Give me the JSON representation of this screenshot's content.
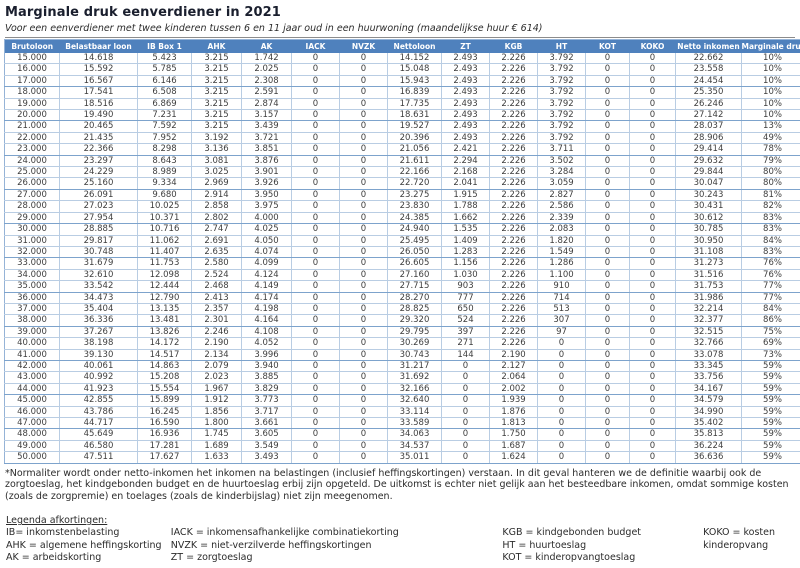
{
  "title": "Marginale druk eenverdiener in 2021",
  "subtitle": "Voor een eenverdiener met twee kinderen tussen 6 en 11 jaar oud in een huurwoning (maandelijkse huur € 614)",
  "colors": {
    "header_bg": "#4f81bd",
    "header_text": "#ffffff",
    "border_light": "#b9cde3",
    "border_medium": "#95b3d7",
    "border_heavy": "#7da3cc",
    "cell_text": "#3d3d3d",
    "title_text": "#1a1f2e",
    "body_text": "#2b2b2b"
  },
  "table": {
    "headers": [
      "Brutoloon",
      "Belastbaar loon",
      "IB Box 1",
      "AHK",
      "AK",
      "IACK",
      "NVZK",
      "Nettoloon",
      "ZT",
      "KGB",
      "HT",
      "KOT",
      "KOKO",
      "Netto inkomen",
      "Marginale druk"
    ],
    "rows": [
      [
        "15.000",
        "14.618",
        "5.423",
        "3.215",
        "1.742",
        "0",
        "0",
        "14.152",
        "2.493",
        "2.226",
        "3.792",
        "0",
        "0",
        "22.662",
        "10%"
      ],
      [
        "16.000",
        "15.592",
        "5.785",
        "3.215",
        "2.025",
        "0",
        "0",
        "15.048",
        "2.493",
        "2.226",
        "3.792",
        "0",
        "0",
        "23.558",
        "10%"
      ],
      [
        "17.000",
        "16.567",
        "6.146",
        "3.215",
        "2.308",
        "0",
        "0",
        "15.943",
        "2.493",
        "2.226",
        "3.792",
        "0",
        "0",
        "24.454",
        "10%"
      ],
      [
        "18.000",
        "17.541",
        "6.508",
        "3.215",
        "2.591",
        "0",
        "0",
        "16.839",
        "2.493",
        "2.226",
        "3.792",
        "0",
        "0",
        "25.350",
        "10%"
      ],
      [
        "19.000",
        "18.516",
        "6.869",
        "3.215",
        "2.874",
        "0",
        "0",
        "17.735",
        "2.493",
        "2.226",
        "3.792",
        "0",
        "0",
        "26.246",
        "10%"
      ],
      [
        "20.000",
        "19.490",
        "7.231",
        "3.215",
        "3.157",
        "0",
        "0",
        "18.631",
        "2.493",
        "2.226",
        "3.792",
        "0",
        "0",
        "27.142",
        "10%"
      ],
      [
        "21.000",
        "20.465",
        "7.592",
        "3.215",
        "3.439",
        "0",
        "0",
        "19.527",
        "2.493",
        "2.226",
        "3.792",
        "0",
        "0",
        "28.037",
        "13%"
      ],
      [
        "22.000",
        "21.435",
        "7.952",
        "3.192",
        "3.721",
        "0",
        "0",
        "20.396",
        "2.493",
        "2.226",
        "3.792",
        "0",
        "0",
        "28.906",
        "49%"
      ],
      [
        "23.000",
        "22.366",
        "8.298",
        "3.136",
        "3.851",
        "0",
        "0",
        "21.056",
        "2.421",
        "2.226",
        "3.711",
        "0",
        "0",
        "29.414",
        "78%"
      ],
      [
        "24.000",
        "23.297",
        "8.643",
        "3.081",
        "3.876",
        "0",
        "0",
        "21.611",
        "2.294",
        "2.226",
        "3.502",
        "0",
        "0",
        "29.632",
        "79%"
      ],
      [
        "25.000",
        "24.229",
        "8.989",
        "3.025",
        "3.901",
        "0",
        "0",
        "22.166",
        "2.168",
        "2.226",
        "3.284",
        "0",
        "0",
        "29.844",
        "80%"
      ],
      [
        "26.000",
        "25.160",
        "9.334",
        "2.969",
        "3.926",
        "0",
        "0",
        "22.720",
        "2.041",
        "2.226",
        "3.059",
        "0",
        "0",
        "30.047",
        "80%"
      ],
      [
        "27.000",
        "26.091",
        "9.680",
        "2.914",
        "3.950",
        "0",
        "0",
        "23.275",
        "1.915",
        "2.226",
        "2.827",
        "0",
        "0",
        "30.243",
        "81%"
      ],
      [
        "28.000",
        "27.023",
        "10.025",
        "2.858",
        "3.975",
        "0",
        "0",
        "23.830",
        "1.788",
        "2.226",
        "2.586",
        "0",
        "0",
        "30.431",
        "82%"
      ],
      [
        "29.000",
        "27.954",
        "10.371",
        "2.802",
        "4.000",
        "0",
        "0",
        "24.385",
        "1.662",
        "2.226",
        "2.339",
        "0",
        "0",
        "30.612",
        "83%"
      ],
      [
        "30.000",
        "28.885",
        "10.716",
        "2.747",
        "4.025",
        "0",
        "0",
        "24.940",
        "1.535",
        "2.226",
        "2.083",
        "0",
        "0",
        "30.785",
        "83%"
      ],
      [
        "31.000",
        "29.817",
        "11.062",
        "2.691",
        "4.050",
        "0",
        "0",
        "25.495",
        "1.409",
        "2.226",
        "1.820",
        "0",
        "0",
        "30.950",
        "84%"
      ],
      [
        "32.000",
        "30.748",
        "11.407",
        "2.635",
        "4.074",
        "0",
        "0",
        "26.050",
        "1.283",
        "2.226",
        "1.549",
        "0",
        "0",
        "31.108",
        "83%"
      ],
      [
        "33.000",
        "31.679",
        "11.753",
        "2.580",
        "4.099",
        "0",
        "0",
        "26.605",
        "1.156",
        "2.226",
        "1.286",
        "0",
        "0",
        "31.273",
        "76%"
      ],
      [
        "34.000",
        "32.610",
        "12.098",
        "2.524",
        "4.124",
        "0",
        "0",
        "27.160",
        "1.030",
        "2.226",
        "1.100",
        "0",
        "0",
        "31.516",
        "76%"
      ],
      [
        "35.000",
        "33.542",
        "12.444",
        "2.468",
        "4.149",
        "0",
        "0",
        "27.715",
        "903",
        "2.226",
        "910",
        "0",
        "0",
        "31.753",
        "77%"
      ],
      [
        "36.000",
        "34.473",
        "12.790",
        "2.413",
        "4.174",
        "0",
        "0",
        "28.270",
        "777",
        "2.226",
        "714",
        "0",
        "0",
        "31.986",
        "77%"
      ],
      [
        "37.000",
        "35.404",
        "13.135",
        "2.357",
        "4.198",
        "0",
        "0",
        "28.825",
        "650",
        "2.226",
        "513",
        "0",
        "0",
        "32.214",
        "84%"
      ],
      [
        "38.000",
        "36.336",
        "13.481",
        "2.301",
        "4.164",
        "0",
        "0",
        "29.320",
        "524",
        "2.226",
        "307",
        "0",
        "0",
        "32.377",
        "86%"
      ],
      [
        "39.000",
        "37.267",
        "13.826",
        "2.246",
        "4.108",
        "0",
        "0",
        "29.795",
        "397",
        "2.226",
        "97",
        "0",
        "0",
        "32.515",
        "75%"
      ],
      [
        "40.000",
        "38.198",
        "14.172",
        "2.190",
        "4.052",
        "0",
        "0",
        "30.269",
        "271",
        "2.226",
        "0",
        "0",
        "0",
        "32.766",
        "69%"
      ],
      [
        "41.000",
        "39.130",
        "14.517",
        "2.134",
        "3.996",
        "0",
        "0",
        "30.743",
        "144",
        "2.190",
        "0",
        "0",
        "0",
        "33.078",
        "73%"
      ],
      [
        "42.000",
        "40.061",
        "14.863",
        "2.079",
        "3.940",
        "0",
        "0",
        "31.217",
        "0",
        "2.127",
        "0",
        "0",
        "0",
        "33.345",
        "59%"
      ],
      [
        "43.000",
        "40.992",
        "15.208",
        "2.023",
        "3.885",
        "0",
        "0",
        "31.692",
        "0",
        "2.064",
        "0",
        "0",
        "0",
        "33.756",
        "59%"
      ],
      [
        "44.000",
        "41.923",
        "15.554",
        "1.967",
        "3.829",
        "0",
        "0",
        "32.166",
        "0",
        "2.002",
        "0",
        "0",
        "0",
        "34.167",
        "59%"
      ],
      [
        "45.000",
        "42.855",
        "15.899",
        "1.912",
        "3.773",
        "0",
        "0",
        "32.640",
        "0",
        "1.939",
        "0",
        "0",
        "0",
        "34.579",
        "59%"
      ],
      [
        "46.000",
        "43.786",
        "16.245",
        "1.856",
        "3.717",
        "0",
        "0",
        "33.114",
        "0",
        "1.876",
        "0",
        "0",
        "0",
        "34.990",
        "59%"
      ],
      [
        "47.000",
        "44.717",
        "16.590",
        "1.800",
        "3.661",
        "0",
        "0",
        "33.589",
        "0",
        "1.813",
        "0",
        "0",
        "0",
        "35.402",
        "59%"
      ],
      [
        "48.000",
        "45.649",
        "16.936",
        "1.745",
        "3.605",
        "0",
        "0",
        "34.063",
        "0",
        "1.750",
        "0",
        "0",
        "0",
        "35.813",
        "59%"
      ],
      [
        "49.000",
        "46.580",
        "17.281",
        "1.689",
        "3.549",
        "0",
        "0",
        "34.537",
        "0",
        "1.687",
        "0",
        "0",
        "0",
        "36.224",
        "59%"
      ],
      [
        "50.000",
        "47.511",
        "17.627",
        "1.633",
        "3.493",
        "0",
        "0",
        "35.011",
        "0",
        "1.624",
        "0",
        "0",
        "0",
        "36.636",
        "59%"
      ]
    ]
  },
  "footnote": "*Normaliter wordt onder netto-inkomen het inkomen na belastingen (inclusief heffingskortingen) verstaan. In dit geval hanteren we de definitie waarbij ook de zorgtoeslag, het kindgebonden budget en de huurtoeslag erbij zijn opgeteld. De uitkomst is echter niet gelijk aan het besteedbare inkomen, omdat sommige kosten (zoals de zorgpremie) en toelages (zoals de kinderbijslag) niet zijn meegenomen.",
  "legend": {
    "title": "Legenda afkortingen:",
    "columns": [
      [
        "IB= inkomstenbelasting",
        "AHK = algemene heffingskorting",
        "AK = arbeidskorting"
      ],
      [
        "IACK = inkomensafhankelijke combinatiekorting",
        "NVZK = niet-verzilverde heffingskortingen",
        "ZT = zorgtoeslag"
      ],
      [
        "KGB = kindgebonden budget",
        "HT = huurtoeslag",
        "KOT = kinderopvangtoeslag"
      ],
      [
        "KOKO = kosten kinderopvang"
      ]
    ]
  }
}
